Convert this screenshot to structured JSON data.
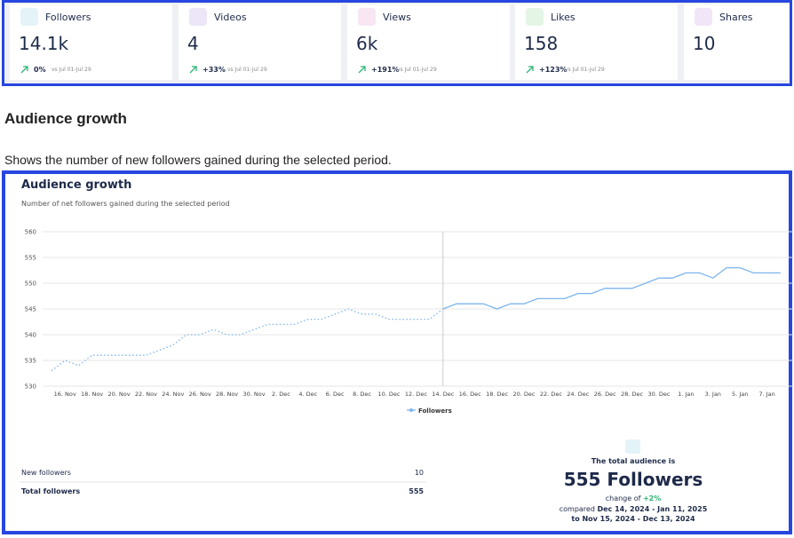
{
  "stats": [
    {
      "label": "Followers",
      "value": "14.1k",
      "change": "0%",
      "compare": "vs Jul 01-Jul 29"
    },
    {
      "label": "Videos",
      "value": "4",
      "change": "+33%",
      "compare": "vs Jul 01-Jul 29"
    },
    {
      "label": "Views",
      "value": "6k",
      "change": "+191%",
      "compare": "vs Jul 01-Jul 29"
    },
    {
      "label": "Likes",
      "value": "158",
      "change": "+123%",
      "compare": "vs Jul 01-Jul 29"
    },
    {
      "label": "Shares",
      "value": "10"
    }
  ],
  "section": {
    "title": "Audience growth",
    "description": "Shows the number of new followers gained during the selected period."
  },
  "chart_data": {
    "type": "line",
    "title": "Audience growth",
    "subtitle": "Number of net followers gained during the selected period",
    "categories": [
      null,
      "16. Nov",
      null,
      "18. Nov",
      null,
      "20. Nov",
      null,
      "22. Nov",
      null,
      "24. Nov",
      null,
      "26. Nov",
      null,
      "28. Nov",
      null,
      "30. Nov",
      null,
      "2. Dec",
      null,
      "4. Dec",
      null,
      "6. Dec",
      null,
      "8. Dec",
      null,
      "10. Dec",
      null,
      "12. Dec",
      null,
      "14. Dec",
      null,
      "16. Dec",
      null,
      "18. Dec",
      null,
      "20. Dec",
      null,
      "22. Dec",
      null,
      "24. Dec",
      null,
      "26. Dec",
      null,
      "28. Dec",
      null,
      "30. Dec",
      null,
      "1. Jan",
      null,
      "3. Jan",
      null,
      "5. Jan",
      null,
      "7. Jan",
      null
    ],
    "series": [
      {
        "color": "#7cb5ec",
        "dash": true,
        "values": [
          533,
          535,
          534,
          536,
          536,
          536,
          536,
          536,
          537,
          538,
          540,
          540,
          541,
          540,
          540,
          541,
          542,
          542,
          542,
          543,
          543,
          544,
          545,
          544,
          544,
          543,
          543,
          543,
          543,
          545,
          null,
          null,
          null,
          null,
          null,
          null,
          null,
          null,
          null,
          null,
          null,
          null,
          null,
          null,
          null,
          null,
          null,
          null,
          null,
          null,
          null,
          null,
          null,
          null,
          null
        ]
      },
      {
        "name": "Followers",
        "color": "#7cb5ec",
        "values": [
          null,
          null,
          null,
          null,
          null,
          null,
          null,
          null,
          null,
          null,
          null,
          null,
          null,
          null,
          null,
          null,
          null,
          null,
          null,
          null,
          null,
          null,
          null,
          null,
          null,
          null,
          null,
          null,
          null,
          545,
          546,
          546,
          546,
          545,
          546,
          546,
          547,
          547,
          547,
          548,
          548,
          549,
          549,
          549,
          550,
          551,
          551,
          552,
          552,
          551,
          553,
          553,
          552,
          552,
          552
        ]
      }
    ],
    "ylim": [
      530,
      560
    ],
    "yticks": [
      530,
      535,
      540,
      545,
      550,
      555,
      560
    ],
    "grid": true
  },
  "summary": {
    "rows": [
      {
        "label": "New followers",
        "value": "10"
      },
      {
        "label": "Total followers",
        "value": "555"
      }
    ],
    "heading": "The total audience is",
    "total": "555 Followers",
    "change_label": "change of",
    "change": "+2%",
    "compared_label": "compared",
    "compared": "Dec 14, 2024 - Jan 11, 2025",
    "to": "to Nov 15, 2024 - Dec 13, 2024"
  }
}
